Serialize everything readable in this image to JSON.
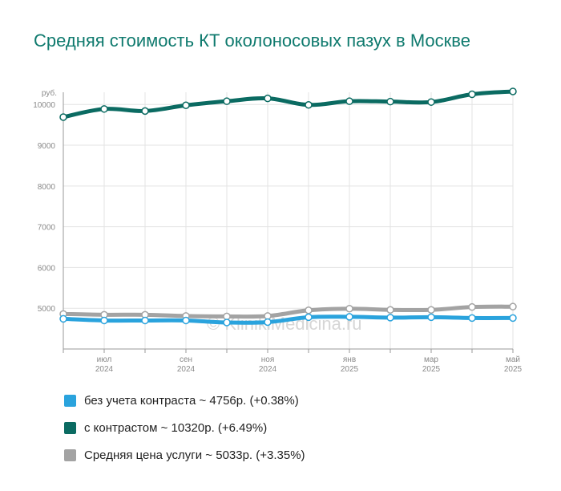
{
  "title": "Средняя стоимость КТ околоносовых пазух в Москве",
  "watermark": "© KlinikiMedicina.ru",
  "chart_data": {
    "type": "line",
    "y_unit": "руб.",
    "ylim": [
      4000,
      10300
    ],
    "yticks": [
      5000,
      6000,
      7000,
      8000,
      9000,
      10000
    ],
    "x": [
      "2024-06",
      "2024-07",
      "2024-08",
      "2024-09",
      "2024-10",
      "2024-11",
      "2024-12",
      "2025-01",
      "2025-02",
      "2025-03",
      "2025-04",
      "2025-05"
    ],
    "xtick_labels": [
      {
        "x": "2024-07",
        "month": "июл",
        "year": "2024"
      },
      {
        "x": "2024-09",
        "month": "сен",
        "year": "2024"
      },
      {
        "x": "2024-11",
        "month": "ноя",
        "year": "2024"
      },
      {
        "x": "2025-01",
        "month": "янв",
        "year": "2025"
      },
      {
        "x": "2025-03",
        "month": "мар",
        "year": "2025"
      },
      {
        "x": "2025-05",
        "month": "май",
        "year": "2025"
      }
    ],
    "grid": true,
    "legend_position": "bottom",
    "series": [
      {
        "name": "Средняя цена услуги",
        "color": "#a3a3a3",
        "values": [
          4860,
          4840,
          4840,
          4810,
          4800,
          4810,
          4950,
          4990,
          4960,
          4960,
          5030,
          5040
        ]
      },
      {
        "name": "без учета контраста",
        "color": "#2aa3dd",
        "values": [
          4740,
          4700,
          4700,
          4700,
          4650,
          4660,
          4780,
          4790,
          4770,
          4780,
          4760,
          4760
        ]
      },
      {
        "name": "с контрастом",
        "color": "#0b6b62",
        "values": [
          9690,
          9890,
          9840,
          9980,
          10080,
          10150,
          9990,
          10080,
          10070,
          10060,
          10250,
          10320
        ]
      }
    ]
  },
  "legend": [
    {
      "label": "без учета контраста ~ 4756р. (+0.38%)",
      "color": "#2aa3dd"
    },
    {
      "label": "с контрастом ~ 10320р. (+6.49%)",
      "color": "#0b6b62"
    },
    {
      "label": "Средняя цена услуги ~ 5033р. (+3.35%)",
      "color": "#a3a3a3"
    }
  ]
}
